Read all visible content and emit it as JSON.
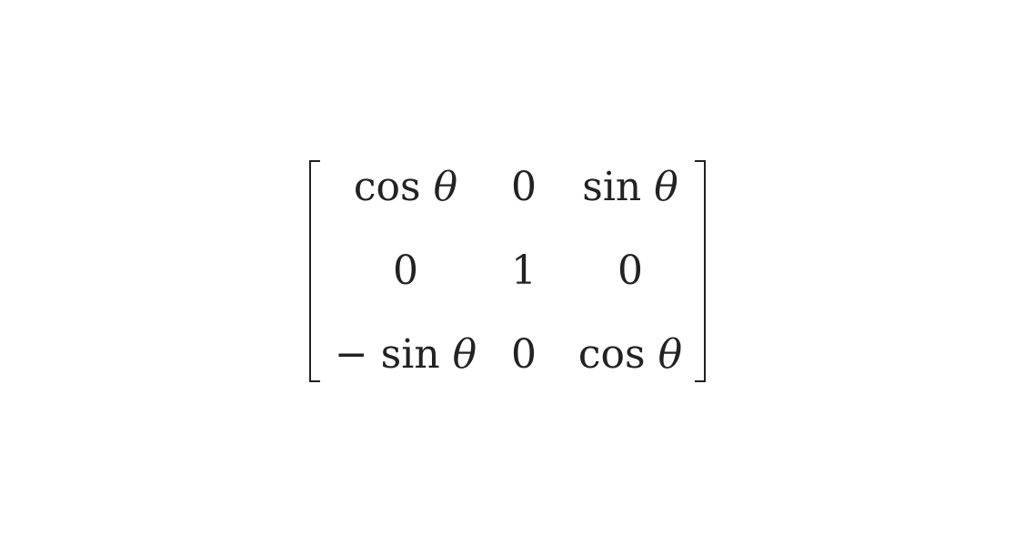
{
  "matrix": {
    "rows": [
      [
        {
          "fn": "cos",
          "var": "θ"
        },
        {
          "text": "0"
        },
        {
          "fn": "sin",
          "var": "θ"
        }
      ],
      [
        {
          "text": "0"
        },
        {
          "text": "1"
        },
        {
          "text": "0"
        }
      ],
      [
        {
          "fn": "− sin",
          "var": "θ"
        },
        {
          "text": "0"
        },
        {
          "fn": "cos",
          "var": "θ"
        }
      ]
    ]
  }
}
